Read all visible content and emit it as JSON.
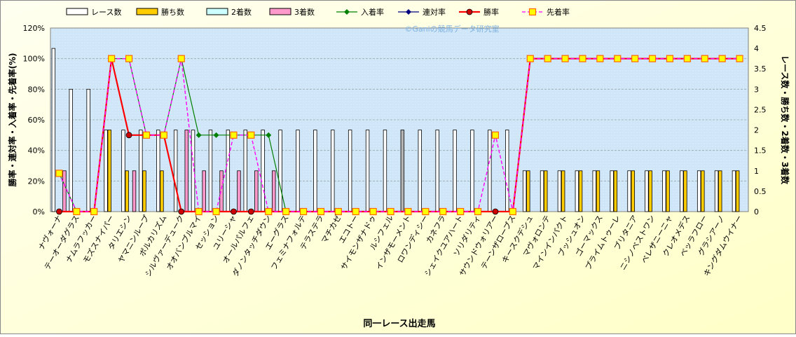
{
  "chart_data": {
    "type": "bar",
    "xlabel": "同一レース出走馬",
    "ylabel_left": "勝率・連対率・入着率・先着率(%)",
    "ylabel_right": "レース数・勝ち数・2着数・3着数",
    "watermark": "©Ganiの競馬データ研究室",
    "ylim_left": [
      0,
      120
    ],
    "yticks_left": [
      "0%",
      "20%",
      "40%",
      "60%",
      "80%",
      "100%",
      "120%"
    ],
    "ylim_right": [
      0,
      4.5
    ],
    "yticks_right": [
      "0",
      "0.5",
      "1",
      "1.5",
      "2",
      "2.5",
      "3",
      "3.5",
      "4",
      "4.5"
    ],
    "grid": true,
    "legend_position": "top",
    "colors": {
      "races": "#ffffff",
      "races_gray": "#b4b4b4",
      "wins": "#ffcc00",
      "second": "#ccffff",
      "third": "#ff99cc",
      "place_rate": "#008000",
      "rentai_rate": "#000080",
      "win_rate": "#ff0000",
      "senchaku_rate": "#ff00ff",
      "plot_bg": "#cfe6f8",
      "outer_bg": "#ffffc8"
    },
    "categories": [
      "ナヴォーナ",
      "テーオーダグラス",
      "ナムラフッカー",
      "モズスナイパー",
      "タリエシン",
      "ヤマニンループ",
      "ポルカリズム",
      "シルヴァーデューク",
      "オオバンブルマイ",
      "セッション",
      "ユリーシャ",
      "オールパルフェ",
      "ダノンタッチダウン",
      "エーグラス",
      "フェミナフォルテ",
      "テラステラ",
      "マチカゼ",
      "エコトー",
      "サイモンザナドゥ",
      "ルシフェル",
      "インザモーメント",
      "ロワンディシー",
      "カネフラ",
      "シェイクユアハート",
      "ソリダリティ",
      "サウンドウォリアー",
      "テーンザローブス",
      "キースクデシュ",
      "マヴォロンテ",
      "マインインパクト",
      "ブッシュオン",
      "ゴーマックス",
      "プライムトゥーレ",
      "ブリタニア",
      "ニシノベストワン",
      "ベレザニーニャ",
      "クレオメデス",
      "ベッラフロー",
      "グラシアーノ",
      "キングダムウイナー"
    ],
    "series": [
      {
        "name": "レース数",
        "axis": "right",
        "values": [
          4,
          3,
          3,
          2,
          2,
          2,
          2,
          2,
          2,
          2,
          2,
          2,
          2,
          2,
          2,
          2,
          2,
          2,
          2,
          2,
          2,
          2,
          2,
          2,
          2,
          2,
          2,
          1,
          1,
          1,
          1,
          1,
          1,
          1,
          1,
          1,
          1,
          1,
          1,
          1
        ]
      },
      {
        "name": "勝ち数",
        "axis": "right",
        "values": [
          0,
          0,
          0,
          2,
          1,
          1,
          1,
          0,
          0,
          0,
          0,
          0,
          0,
          0,
          0,
          0,
          0,
          0,
          0,
          0,
          0,
          0,
          0,
          0,
          0,
          0,
          0,
          1,
          1,
          1,
          1,
          1,
          1,
          1,
          1,
          1,
          1,
          1,
          1,
          1
        ]
      },
      {
        "name": "2着数",
        "axis": "right",
        "values": [
          0,
          0,
          0,
          0,
          0,
          0,
          0,
          0,
          0,
          0,
          0,
          0,
          0,
          0,
          0,
          0,
          0,
          0,
          0,
          0,
          0,
          0,
          0,
          0,
          0,
          0,
          0,
          0,
          0,
          0,
          0,
          0,
          0,
          0,
          0,
          0,
          0,
          0,
          0,
          0
        ]
      },
      {
        "name": "3着数",
        "axis": "right",
        "values": [
          1,
          0,
          0,
          0,
          1,
          0,
          0,
          2,
          1,
          1,
          1,
          1,
          1,
          0,
          0,
          0,
          0,
          0,
          0,
          0,
          0,
          0,
          0,
          0,
          0,
          0,
          0,
          0,
          0,
          0,
          0,
          0,
          0,
          0,
          0,
          0,
          0,
          0,
          0,
          0
        ]
      },
      {
        "name": "入着率",
        "axis": "left",
        "values": [
          25,
          0,
          0,
          100,
          100,
          50,
          50,
          100,
          50,
          50,
          50,
          50,
          50,
          0,
          0,
          0,
          0,
          0,
          0,
          0,
          0,
          0,
          0,
          0,
          0,
          0,
          0,
          100,
          100,
          100,
          100,
          100,
          100,
          100,
          100,
          100,
          100,
          100,
          100,
          100
        ]
      },
      {
        "name": "連対率",
        "axis": "left",
        "values": [
          0,
          0,
          0,
          100,
          50,
          50,
          50,
          0,
          0,
          0,
          0,
          0,
          0,
          0,
          0,
          0,
          0,
          0,
          0,
          0,
          0,
          0,
          0,
          0,
          0,
          0,
          0,
          100,
          100,
          100,
          100,
          100,
          100,
          100,
          100,
          100,
          100,
          100,
          100,
          100
        ]
      },
      {
        "name": "勝率",
        "axis": "left",
        "values": [
          0,
          0,
          0,
          100,
          50,
          50,
          50,
          0,
          0,
          0,
          0,
          0,
          0,
          0,
          0,
          0,
          0,
          0,
          0,
          0,
          0,
          0,
          0,
          0,
          0,
          0,
          0,
          100,
          100,
          100,
          100,
          100,
          100,
          100,
          100,
          100,
          100,
          100,
          100,
          100
        ]
      },
      {
        "name": "先着率",
        "axis": "left",
        "values": [
          25,
          0,
          0,
          100,
          100,
          50,
          50,
          100,
          0,
          0,
          50,
          50,
          0,
          0,
          0,
          0,
          0,
          0,
          0,
          0,
          0,
          0,
          0,
          0,
          0,
          50,
          0,
          100,
          100,
          100,
          100,
          100,
          100,
          100,
          100,
          100,
          100,
          100,
          100,
          100
        ]
      }
    ],
    "gray_race_bar_index": 20,
    "legend": [
      {
        "name": "レース数",
        "kind": "bar",
        "color": "#ffffff"
      },
      {
        "name": "勝ち数",
        "kind": "bar",
        "color": "#ffcc00"
      },
      {
        "name": "2着数",
        "kind": "bar",
        "color": "#ccffff"
      },
      {
        "name": "3着数",
        "kind": "bar",
        "color": "#ff99cc"
      },
      {
        "name": "入着率",
        "kind": "line",
        "color": "#008000",
        "marker": "diamond"
      },
      {
        "name": "連対率",
        "kind": "line",
        "color": "#000080",
        "marker": "diamond"
      },
      {
        "name": "勝率",
        "kind": "line",
        "color": "#ff0000",
        "marker": "circle"
      },
      {
        "name": "先着率",
        "kind": "line",
        "color": "#ff00ff",
        "marker": "square",
        "dashed": true
      }
    ]
  }
}
